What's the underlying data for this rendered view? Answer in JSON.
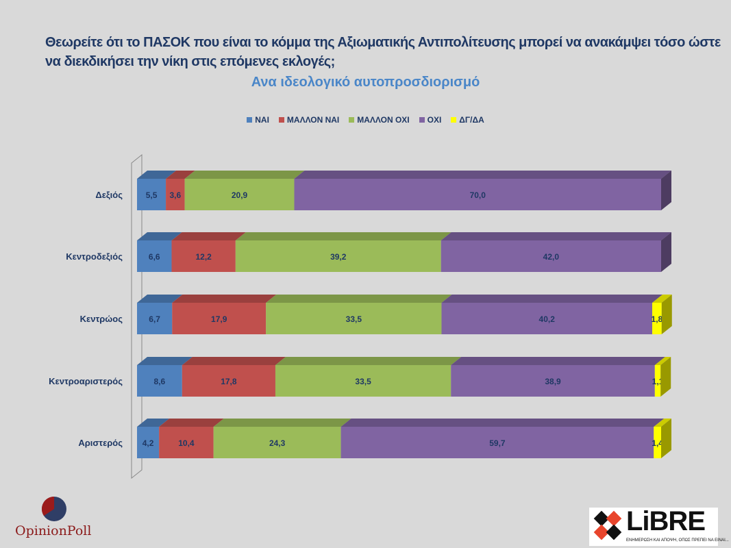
{
  "chart_data": {
    "type": "bar",
    "stacked": true,
    "orientation": "horizontal",
    "title": "Θεωρείτε ότι το ΠΑΣΟΚ που είναι το κόμμα της Αξιωματικής Αντιπολίτευσης μπορεί να ανακάμψει τόσο ώστε να διεκδικήσει την νίκη στις επόμενες εκλογές;",
    "subtitle": "Ανα ιδεολογικό αυτοπροσδιορισμό",
    "categories": [
      "Δεξιός",
      "Κεντροδεξιός",
      "Κεντρώος",
      "Κεντροαριστερός",
      "Αριστερός"
    ],
    "series": [
      {
        "name": "ΝΑΙ",
        "color": "#4f81bd",
        "values": [
          5.5,
          6.6,
          6.7,
          8.6,
          4.2
        ]
      },
      {
        "name": "ΜΑΛΛΟΝ ΝΑΙ",
        "color": "#c0504d",
        "values": [
          3.6,
          12.2,
          17.9,
          17.8,
          10.4
        ]
      },
      {
        "name": "ΜΑΛΛΟΝ ΟΧΙ",
        "color": "#9bbb59",
        "values": [
          20.9,
          39.2,
          33.5,
          33.5,
          24.3
        ]
      },
      {
        "name": "ΟΧΙ",
        "color": "#8064a2",
        "values": [
          70.0,
          42.0,
          40.2,
          38.9,
          59.7
        ]
      },
      {
        "name": "ΔΓ/ΔΑ",
        "color": "#ffff00",
        "values": [
          null,
          null,
          1.8,
          1.1,
          1.4
        ]
      }
    ],
    "labels": [
      [
        "5,5",
        "3,6",
        "20,9",
        "70,0",
        ""
      ],
      [
        "6,6",
        "12,2",
        "39,2",
        "42,0",
        ""
      ],
      [
        "6,7",
        "17,9",
        "33,5",
        "40,2",
        "1,8"
      ],
      [
        "8,6",
        "17,8",
        "33,5",
        "38,9",
        "1,1"
      ],
      [
        "4,2",
        "10,4",
        "24,3",
        "59,7",
        "1,4"
      ]
    ],
    "xlim": [
      0,
      100
    ],
    "legend": "top"
  },
  "logos": {
    "left": "OpinionPoll",
    "right": "LiBRE",
    "right_tagline": "ΕΝΗΜΕΡΩΣΗ ΚΑΙ ΑΠΟΨΗ, ΟΠΩΣ ΠΡΕΠΕΙ ΝΑ ΕΙΝΑΙ..."
  }
}
